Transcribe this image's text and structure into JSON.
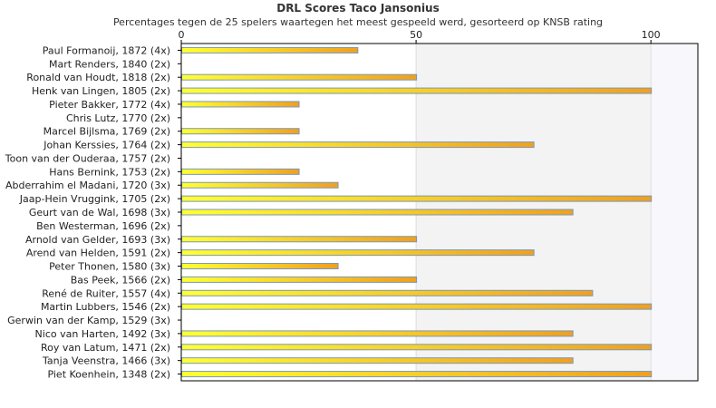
{
  "chart_data": {
    "type": "bar",
    "orientation": "horizontal",
    "title": "DRL Scores Taco Jansonius",
    "subtitle": "Percentages tegen de 25 spelers waartegen het meest gespeeld werd, gesorteerd op KNSB rating",
    "xlim": [
      0,
      110
    ],
    "xticks": [
      "0",
      "50",
      "100"
    ],
    "tick_values": [
      0,
      50,
      100
    ],
    "grid": true,
    "categories": [
      "Paul Formanoij, 1872 (4x)",
      "Mart Renders, 1840 (2x)",
      "Ronald van Houdt, 1818 (2x)",
      "Henk van Lingen, 1805 (2x)",
      "Pieter Bakker, 1772 (4x)",
      "Chris Lutz, 1770 (2x)",
      "Marcel Bijlsma, 1769 (2x)",
      "Johan Kerssies, 1764 (2x)",
      "Toon van der Ouderaa, 1757 (2x)",
      "Hans Bernink, 1753 (2x)",
      "Abderrahim el Madani, 1720 (3x)",
      "Jaap-Hein Vruggink, 1705 (2x)",
      "Geurt van de Wal, 1698 (3x)",
      "Ben Westerman, 1696 (2x)",
      "Arnold van Gelder, 1693 (3x)",
      "Arend van Helden, 1591 (2x)",
      "Peter Thonen, 1580 (3x)",
      "Bas Peek, 1566 (2x)",
      "René de Ruiter, 1557 (4x)",
      "Martin Lubbers, 1546 (2x)",
      "Gerwin van der Kamp, 1529 (3x)",
      "Nico van Harten, 1492 (3x)",
      "Roy van Latum, 1471 (2x)",
      "Tanja Veenstra, 1466 (3x)",
      "Piet Koenhein, 1348 (2x)"
    ],
    "values": [
      37.5,
      0,
      50,
      100,
      25,
      0,
      25,
      75,
      0,
      25,
      33.3,
      100,
      83.3,
      0,
      50,
      75,
      33.3,
      50,
      87.5,
      100,
      0,
      83.3,
      100,
      83.3,
      100
    ],
    "colors": {
      "bar_start": "#ffff33",
      "bar_end": "#f0a020",
      "bar_border": "#7a98b8",
      "band_mid": "#f3f3f3",
      "band_high": "#f8f8fc",
      "grid": "#dddddd",
      "axis": "#000000"
    }
  }
}
